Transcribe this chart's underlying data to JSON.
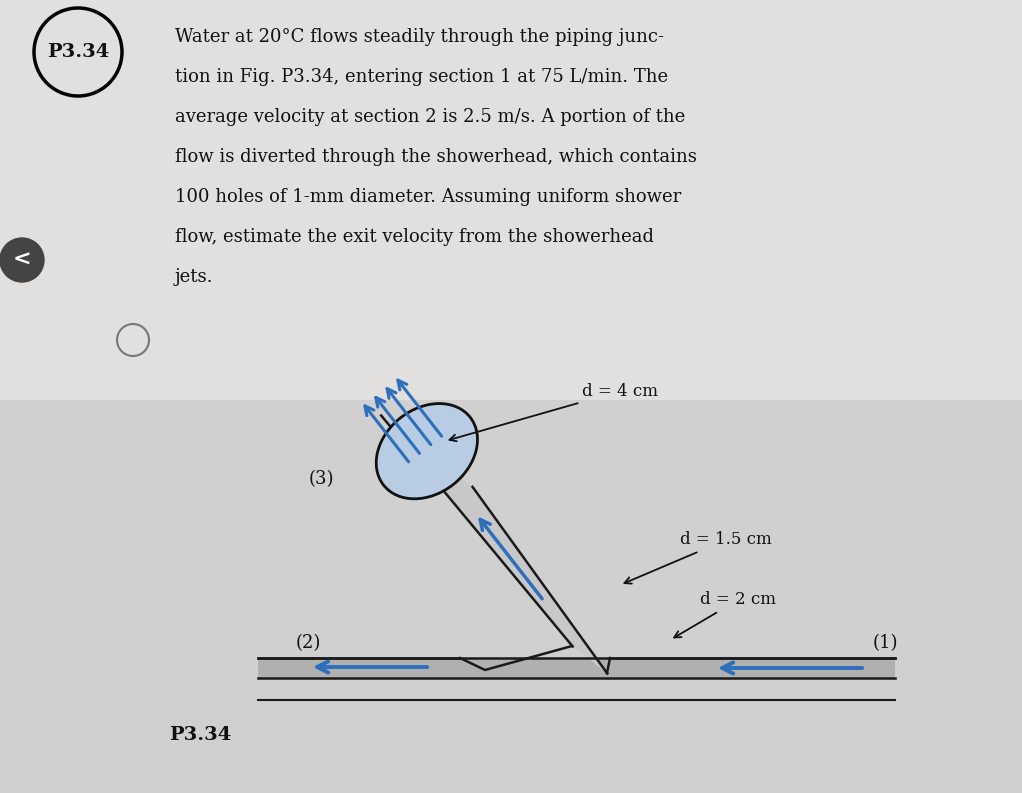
{
  "background_color": "#d0d0d0",
  "text_area_color": "#e0dedd",
  "text_color": "#111111",
  "title_label": "P3.34",
  "problem_text_lines": [
    "Water at 20°C flows steadily through the piping junc-",
    "tion in Fig. P3.34, entering section 1 at 75 L/min. The",
    "average velocity at section 2 is 2.5 m/s. A portion of the",
    "flow is diverted through the showerhead, which contains",
    "100 holes of 1-mm diameter. Assuming uniform shower",
    "flow, estimate the exit velocity from the showerhead",
    "jets."
  ],
  "label_d4": "d = 4 cm",
  "label_d15": "d = 1.5 cm",
  "label_d2": "d = 2 cm",
  "label_3": "(3)",
  "label_2": "(2)",
  "label_1": "(1)",
  "label_p334": "P3.34",
  "arrow_color": "#2d6fbd",
  "pipe_color": "#1a1a1a",
  "pipe_fill": "#b0b0b0",
  "showerhead_fill": "#b8cce4",
  "showerhead_edge": "#111111",
  "figure_width": 10.22,
  "figure_height": 7.93,
  "dpi": 100
}
